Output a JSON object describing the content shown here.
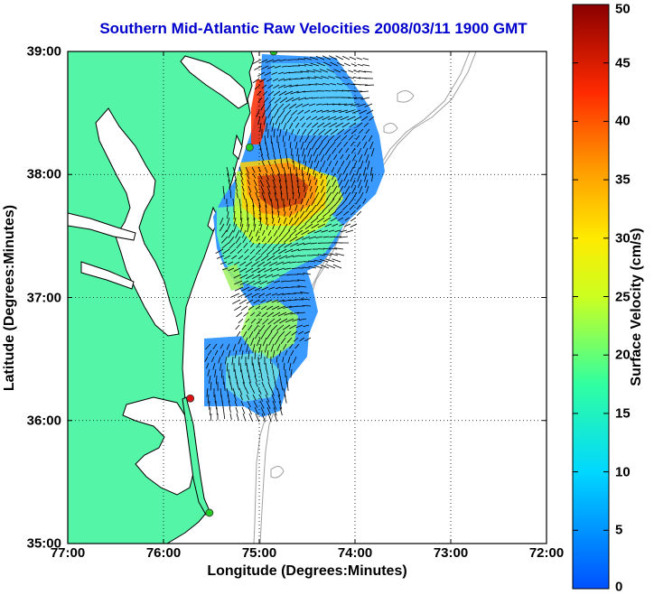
{
  "map": {
    "title": "Southern Mid-Atlantic Raw Velocities 2008/03/11 1900 GMT",
    "xlabel": "Longitude (Degrees:Minutes)",
    "ylabel": "Latitude (Degrees:Minutes)",
    "lon_range": [
      -77,
      -72
    ],
    "lat_range": [
      35,
      39
    ],
    "x_ticks": [
      {
        "value": -77,
        "label": "77:00"
      },
      {
        "value": -76,
        "label": "76:00"
      },
      {
        "value": -75,
        "label": "75:00"
      },
      {
        "value": -74,
        "label": "74:00"
      },
      {
        "value": -73,
        "label": "73:00"
      },
      {
        "value": -72,
        "label": "72:00"
      }
    ],
    "y_ticks": [
      {
        "value": 39,
        "label": "39:00"
      },
      {
        "value": 38,
        "label": "38:00"
      },
      {
        "value": 37,
        "label": "37:00"
      },
      {
        "value": 36,
        "label": "36:00"
      },
      {
        "value": 35,
        "label": "35:00"
      }
    ],
    "grid": true,
    "land_color": "#55f5a8",
    "coast_color": "#000000",
    "bathymetry_color": "#a0a0a0",
    "stations": [
      {
        "lon": -74.85,
        "lat": 39.0,
        "color": "#22cc22"
      },
      {
        "lon": -75.1,
        "lat": 38.22,
        "color": "#22cc22"
      },
      {
        "lon": -75.72,
        "lat": 36.18,
        "color": "#dd1111"
      },
      {
        "lon": -75.52,
        "lat": 35.25,
        "color": "#22cc22"
      }
    ]
  },
  "colorbar": {
    "label": "Surface Velocity (cm/s)",
    "min": 0,
    "max": 50,
    "ticks": [
      "0",
      "5",
      "10",
      "15",
      "20",
      "25",
      "30",
      "35",
      "40",
      "45",
      "50"
    ]
  }
}
